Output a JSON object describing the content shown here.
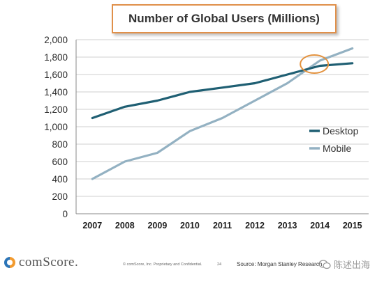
{
  "chart_data": {
    "type": "line",
    "title": "Number of Global Users (Millions)",
    "x": [
      "2007",
      "2008",
      "2009",
      "2010",
      "2011",
      "2012",
      "2013",
      "2014",
      "2015"
    ],
    "series": [
      {
        "name": "Desktop",
        "values": [
          1100,
          1230,
          1300,
          1400,
          1450,
          1500,
          1600,
          1700,
          1730
        ],
        "color": "#1f5f73"
      },
      {
        "name": "Mobile",
        "values": [
          400,
          600,
          700,
          950,
          1100,
          1300,
          1500,
          1760,
          1900
        ],
        "color": "#93b1c2"
      }
    ],
    "yticks": [
      "0",
      "200",
      "400",
      "600",
      "800",
      "1,000",
      "1,200",
      "1,400",
      "1,600",
      "1,800",
      "2,000"
    ],
    "ylim": [
      0,
      2000
    ],
    "grid": true,
    "legend": "right",
    "annotation": {
      "type": "circle",
      "at_x": "2014",
      "at_y": 1720,
      "color": "#e3923e"
    }
  },
  "footer": {
    "logo_text": "comScore.",
    "copyright": "© comScore, Inc. Proprietary and Confidential.",
    "page_number": "24",
    "source": "Source: Morgan Stanley Research",
    "watermark": "陈述出海"
  }
}
